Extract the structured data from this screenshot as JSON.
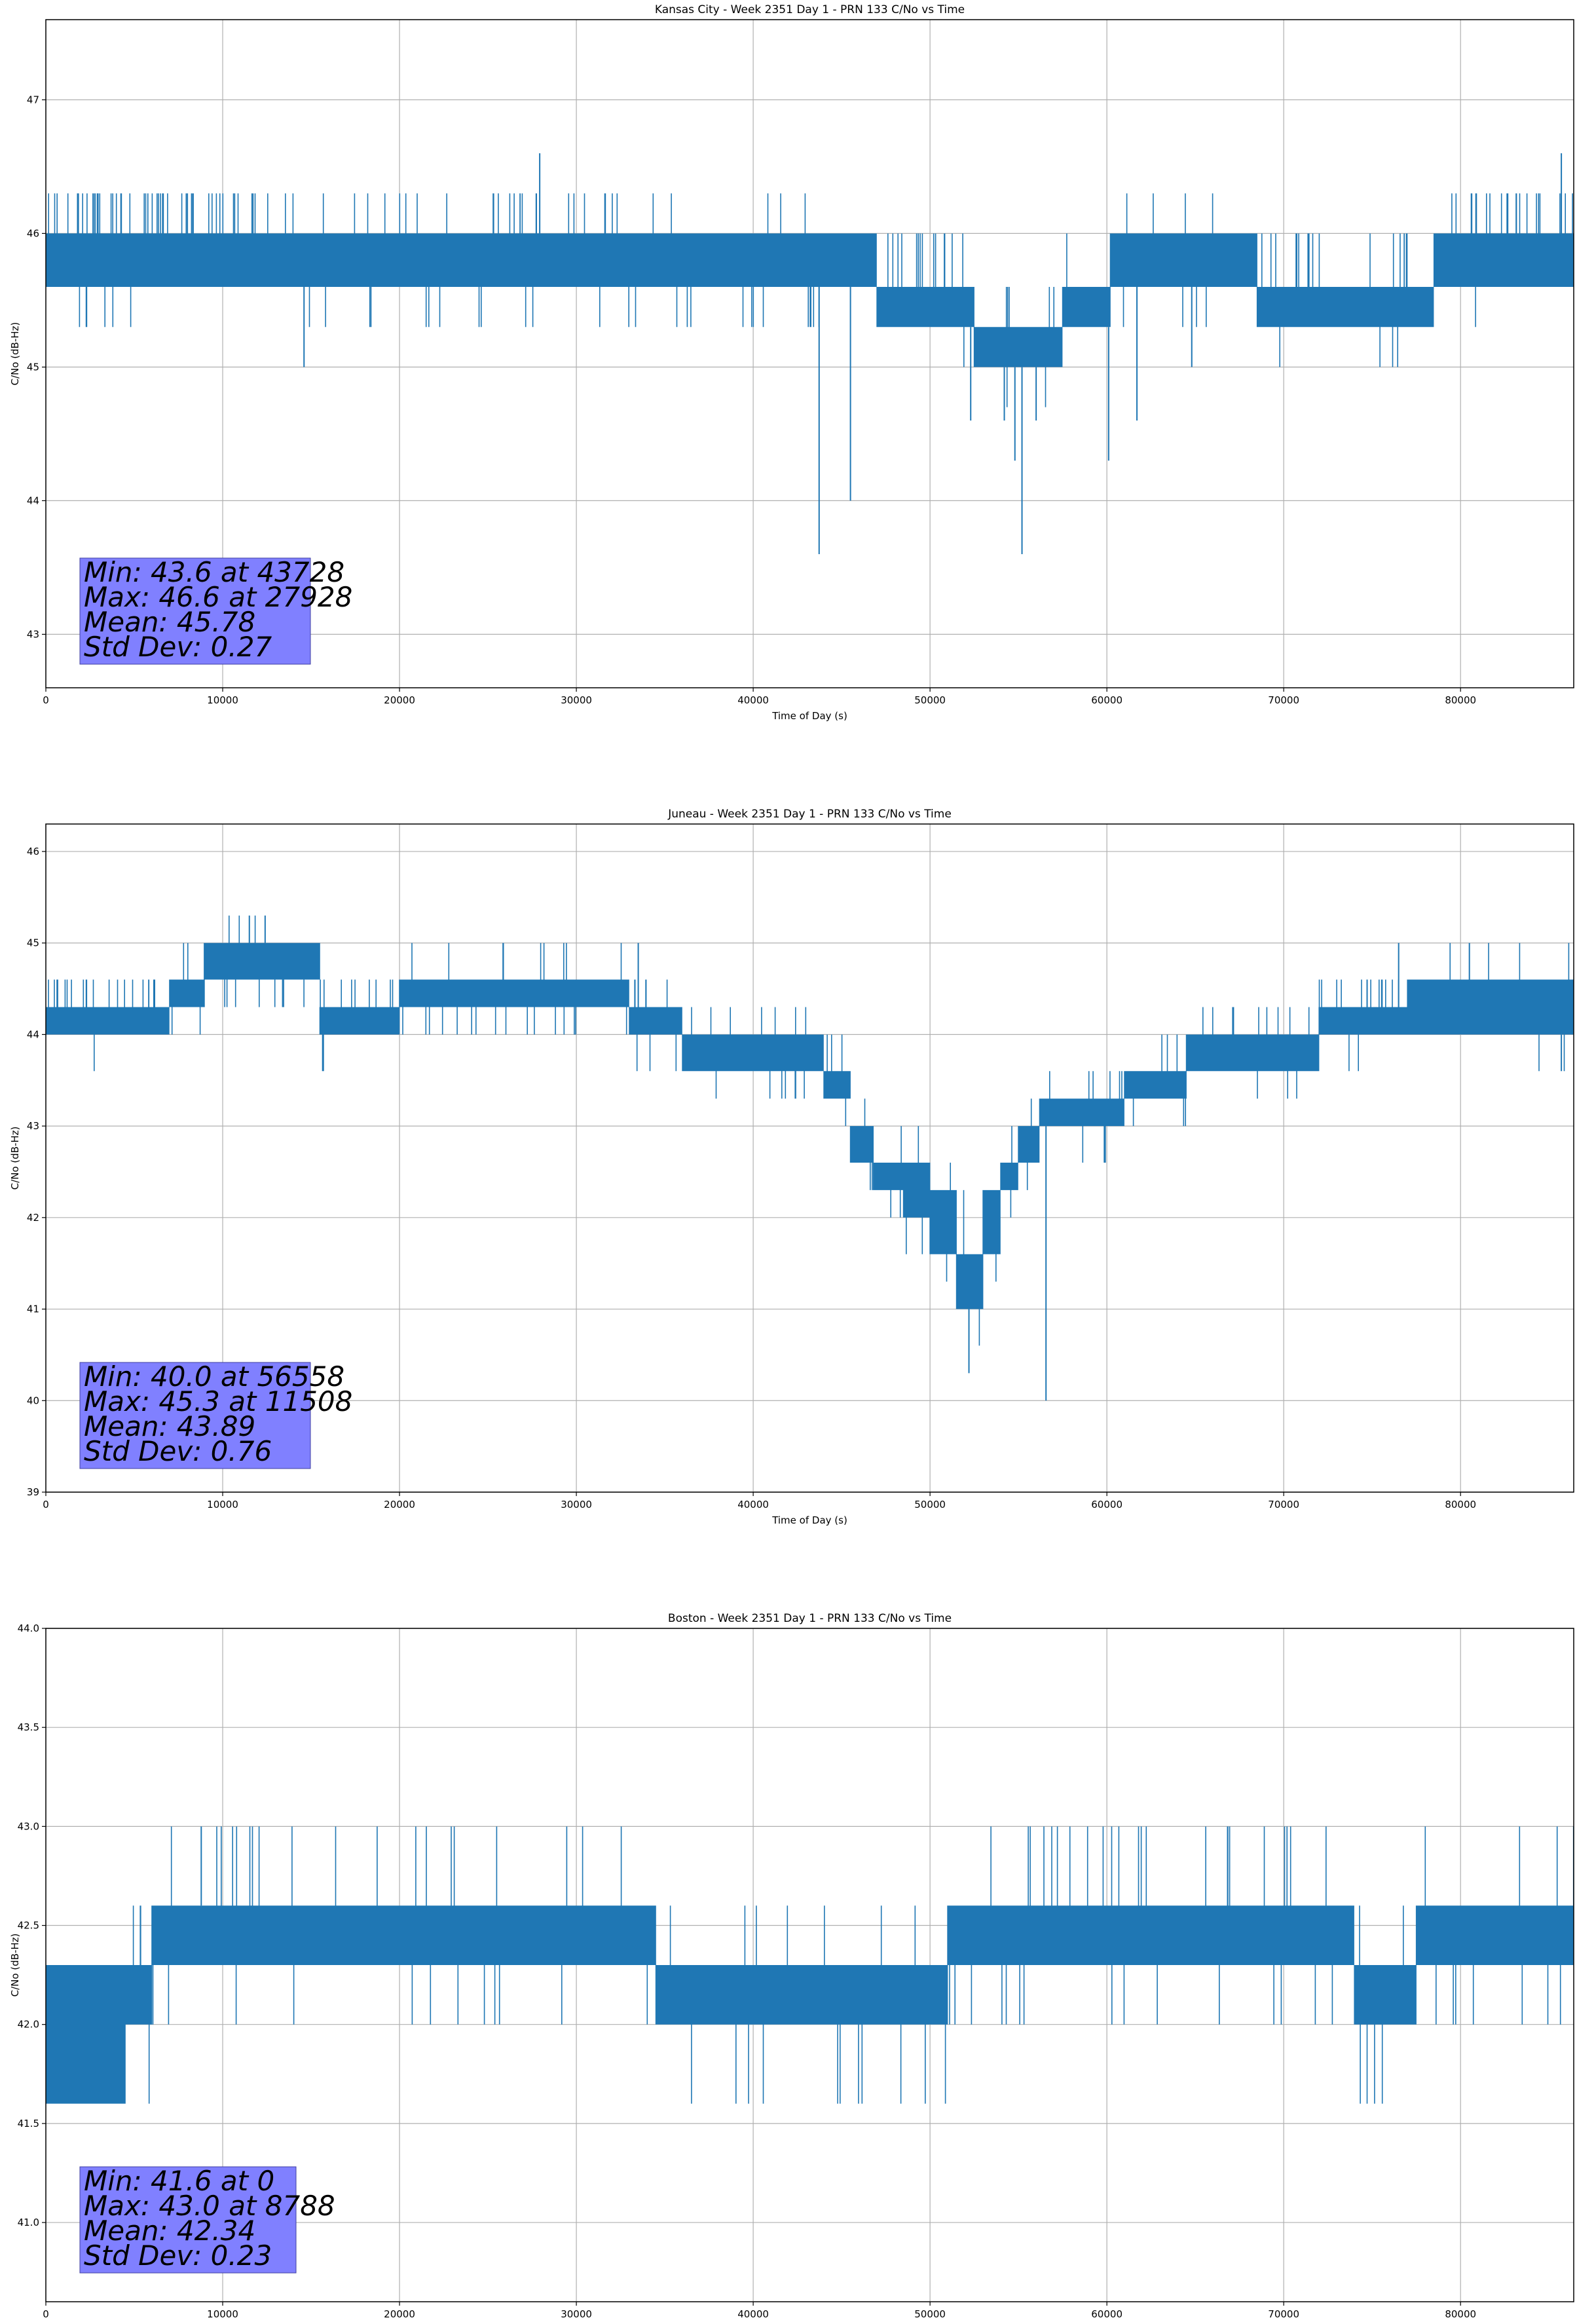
{
  "colors": {
    "line": "#1f77b4",
    "grid": "#b0b0b0",
    "stats_box_fill": "#8080ff",
    "stats_box_edge": "#4040a0",
    "axis": "#000000",
    "background": "#ffffff"
  },
  "chart_data": [
    {
      "type": "line",
      "title": "Kansas City - Week 2351 Day 1 - PRN 133 C/No vs Time",
      "xlabel": "Time of Day (s)",
      "ylabel": "C/No (dB-Hz)",
      "xlim": [
        0,
        86400
      ],
      "ylim": [
        42.6,
        47.6
      ],
      "xticks": [
        0,
        10000,
        20000,
        30000,
        40000,
        50000,
        60000,
        70000,
        80000
      ],
      "yticks": [
        43,
        44,
        45,
        46,
        47
      ],
      "ytick_labels": [
        "43",
        "44",
        "45",
        "46",
        "47"
      ],
      "grid": true,
      "resolution": 0.3,
      "band_segments": [
        {
          "x": [
            0,
            14600
          ],
          "low": 45.6,
          "high": 46.0,
          "up_rate": 0.45,
          "up_to": 46.3,
          "down_rate": 0.05,
          "down_to": 45.3
        },
        {
          "x": [
            14600,
            35000
          ],
          "low": 45.6,
          "high": 46.0,
          "up_rate": 0.15,
          "up_to": 46.3,
          "down_rate": 0.08,
          "down_to": 45.3
        },
        {
          "x": [
            35000,
            47000
          ],
          "low": 45.6,
          "high": 46.0,
          "up_rate": 0.04,
          "up_to": 46.3,
          "down_rate": 0.12,
          "down_to": 45.3
        },
        {
          "x": [
            47000,
            52500
          ],
          "low": 45.3,
          "high": 45.6,
          "up_rate": 0.3,
          "up_to": 46.0,
          "down_rate": 0.02,
          "down_to": 45.0
        },
        {
          "x": [
            52500,
            57500
          ],
          "low": 45.0,
          "high": 45.3,
          "up_rate": 0.12,
          "up_to": 45.6,
          "down_rate": 0.05,
          "down_to": 44.7
        },
        {
          "x": [
            57500,
            60200
          ],
          "low": 45.3,
          "high": 45.6,
          "up_rate": 0.05,
          "up_to": 46.0,
          "down_rate": 0.02,
          "down_to": 45.0
        },
        {
          "x": [
            60200,
            68500
          ],
          "low": 45.6,
          "high": 46.0,
          "up_rate": 0.06,
          "up_to": 46.3,
          "down_rate": 0.06,
          "down_to": 45.3
        },
        {
          "x": [
            68500,
            78500
          ],
          "low": 45.3,
          "high": 45.6,
          "up_rate": 0.2,
          "up_to": 46.0,
          "down_rate": 0.05,
          "down_to": 45.0
        },
        {
          "x": [
            78500,
            80500
          ],
          "low": 45.6,
          "high": 46.0,
          "up_rate": 0.1,
          "up_to": 46.3,
          "down_rate": 0.02,
          "down_to": 45.3
        },
        {
          "x": [
            80500,
            86400
          ],
          "low": 45.6,
          "high": 46.0,
          "up_rate": 0.4,
          "up_to": 46.3,
          "down_rate": 0.02,
          "down_to": 45.3
        }
      ],
      "spikes": [
        {
          "x": 43728,
          "y": 43.6
        },
        {
          "x": 45500,
          "y": 44.0
        },
        {
          "x": 55200,
          "y": 43.6
        },
        {
          "x": 54800,
          "y": 44.3
        },
        {
          "x": 56000,
          "y": 44.6
        },
        {
          "x": 52300,
          "y": 44.6
        },
        {
          "x": 54200,
          "y": 44.6
        },
        {
          "x": 60100,
          "y": 44.3
        },
        {
          "x": 61700,
          "y": 44.6
        },
        {
          "x": 64800,
          "y": 45.0
        },
        {
          "x": 14600,
          "y": 45.0
        },
        {
          "x": 27928,
          "y": 46.6
        },
        {
          "x": 85700,
          "y": 46.6
        }
      ],
      "stats": {
        "min": "Min: 43.6 at 43728",
        "max": "Max: 46.6 at 27928",
        "mean": "Mean: 45.78",
        "std": "Std Dev: 0.27"
      }
    },
    {
      "type": "line",
      "title": "Juneau - Week 2351 Day 1 - PRN 133 C/No vs Time",
      "xlabel": "Time of Day (s)",
      "ylabel": "C/No (dB-Hz)",
      "xlim": [
        0,
        86400
      ],
      "ylim": [
        39.0,
        46.3
      ],
      "xticks": [
        0,
        10000,
        20000,
        30000,
        40000,
        50000,
        60000,
        70000,
        80000
      ],
      "yticks": [
        39,
        40,
        41,
        42,
        43,
        44,
        45,
        46
      ],
      "ytick_labels": [
        "39",
        "40",
        "41",
        "42",
        "43",
        "44",
        "45",
        "46"
      ],
      "grid": true,
      "resolution": 0.3,
      "band_segments": [
        {
          "x": [
            0,
            7000
          ],
          "low": 44.0,
          "high": 44.3,
          "up_rate": 0.35,
          "up_to": 44.6,
          "down_rate": 0.02,
          "down_to": 43.6
        },
        {
          "x": [
            7000,
            9000
          ],
          "low": 44.3,
          "high": 44.6,
          "up_rate": 0.2,
          "up_to": 45.0,
          "down_rate": 0.1,
          "down_to": 44.0
        },
        {
          "x": [
            9000,
            15500
          ],
          "low": 44.6,
          "high": 45.0,
          "up_rate": 0.05,
          "up_to": 45.3,
          "down_rate": 0.15,
          "down_to": 44.3
        },
        {
          "x": [
            15500,
            20000
          ],
          "low": 44.0,
          "high": 44.3,
          "up_rate": 0.25,
          "up_to": 44.6,
          "down_rate": 0.05,
          "down_to": 43.6
        },
        {
          "x": [
            20000,
            33000
          ],
          "low": 44.3,
          "high": 44.6,
          "up_rate": 0.08,
          "up_to": 45.0,
          "down_rate": 0.15,
          "down_to": 44.0
        },
        {
          "x": [
            33000,
            36000
          ],
          "low": 44.0,
          "high": 44.3,
          "up_rate": 0.2,
          "up_to": 44.6,
          "down_rate": 0.1,
          "down_to": 43.6
        },
        {
          "x": [
            36000,
            44000
          ],
          "low": 43.6,
          "high": 44.0,
          "up_rate": 0.1,
          "up_to": 44.3,
          "down_rate": 0.1,
          "down_to": 43.3
        },
        {
          "x": [
            44000,
            45500
          ],
          "low": 43.3,
          "high": 43.6,
          "up_rate": 0.2,
          "up_to": 44.0,
          "down_rate": 0.1,
          "down_to": 43.0
        },
        {
          "x": [
            45500,
            46800
          ],
          "low": 42.6,
          "high": 43.0,
          "up_rate": 0.1,
          "up_to": 43.3,
          "down_rate": 0.2,
          "down_to": 42.3
        },
        {
          "x": [
            46800,
            48500
          ],
          "low": 42.3,
          "high": 42.6,
          "up_rate": 0.1,
          "up_to": 43.0,
          "down_rate": 0.15,
          "down_to": 42.0
        },
        {
          "x": [
            48500,
            50000
          ],
          "low": 42.0,
          "high": 42.6,
          "up_rate": 0.05,
          "up_to": 43.0,
          "down_rate": 0.15,
          "down_to": 41.6
        },
        {
          "x": [
            50000,
            51500
          ],
          "low": 41.6,
          "high": 42.3,
          "up_rate": 0.05,
          "up_to": 42.6,
          "down_rate": 0.1,
          "down_to": 41.3
        },
        {
          "x": [
            51500,
            53000
          ],
          "low": 41.0,
          "high": 41.6,
          "up_rate": 0.05,
          "up_to": 42.3,
          "down_rate": 0.05,
          "down_to": 40.6
        },
        {
          "x": [
            53000,
            54000
          ],
          "low": 41.6,
          "high": 42.3,
          "up_rate": 0.05,
          "up_to": 42.6,
          "down_rate": 0.1,
          "down_to": 41.3
        },
        {
          "x": [
            54000,
            55000
          ],
          "low": 42.3,
          "high": 42.6,
          "up_rate": 0.1,
          "up_to": 43.0,
          "down_rate": 0.1,
          "down_to": 42.0
        },
        {
          "x": [
            55000,
            56200
          ],
          "low": 42.6,
          "high": 43.0,
          "up_rate": 0.1,
          "up_to": 43.3,
          "down_rate": 0.1,
          "down_to": 42.3
        },
        {
          "x": [
            56200,
            61000
          ],
          "low": 43.0,
          "high": 43.3,
          "up_rate": 0.15,
          "up_to": 43.6,
          "down_rate": 0.1,
          "down_to": 42.6
        },
        {
          "x": [
            61000,
            64500
          ],
          "low": 43.3,
          "high": 43.6,
          "up_rate": 0.1,
          "up_to": 44.0,
          "down_rate": 0.1,
          "down_to": 43.0
        },
        {
          "x": [
            64500,
            72000
          ],
          "low": 43.6,
          "high": 44.0,
          "up_rate": 0.15,
          "up_to": 44.3,
          "down_rate": 0.05,
          "down_to": 43.3
        },
        {
          "x": [
            72000,
            77000
          ],
          "low": 44.0,
          "high": 44.3,
          "up_rate": 0.35,
          "up_to": 44.6,
          "down_rate": 0.05,
          "down_to": 43.6
        },
        {
          "x": [
            77000,
            86400
          ],
          "low": 44.0,
          "high": 44.6,
          "up_rate": 0.05,
          "up_to": 45.0,
          "down_rate": 0.02,
          "down_to": 43.6
        }
      ],
      "spikes": [
        {
          "x": 56558,
          "y": 40.0
        },
        {
          "x": 52200,
          "y": 40.3
        },
        {
          "x": 11508,
          "y": 45.3
        },
        {
          "x": 12400,
          "y": 45.3
        },
        {
          "x": 33500,
          "y": 45.0
        },
        {
          "x": 76500,
          "y": 45.0
        },
        {
          "x": 80500,
          "y": 45.0
        },
        {
          "x": 85700,
          "y": 43.6
        }
      ],
      "stats": {
        "min": "Min: 40.0 at 56558",
        "max": "Max: 45.3 at 11508",
        "mean": "Mean: 43.89",
        "std": "Std Dev: 0.76"
      }
    },
    {
      "type": "line",
      "title": "Boston - Week 2351 Day 1 - PRN 133 C/No vs Time",
      "xlabel": "Time of Day (s)",
      "ylabel": "C/No (dB-Hz)",
      "xlim": [
        0,
        86400
      ],
      "ylim": [
        40.6,
        44.0
      ],
      "xticks": [
        0,
        10000,
        20000,
        30000,
        40000,
        50000,
        60000,
        70000,
        80000
      ],
      "yticks": [
        41.0,
        41.5,
        42.0,
        42.5,
        43.0,
        43.5,
        44.0
      ],
      "ytick_labels": [
        "41.0",
        "41.5",
        "42.0",
        "42.5",
        "43.0",
        "43.5",
        "44.0"
      ],
      "grid": true,
      "resolution": 0.3,
      "band_segments": [
        {
          "x": [
            0,
            4500
          ],
          "low": 41.6,
          "high": 42.3,
          "up_rate": 0.02,
          "up_to": 42.3,
          "down_rate": 0.15,
          "down_to": 41.6
        },
        {
          "x": [
            4500,
            6000
          ],
          "low": 42.0,
          "high": 42.3,
          "up_rate": 0.2,
          "up_to": 42.6,
          "down_rate": 0.1,
          "down_to": 41.6
        },
        {
          "x": [
            6000,
            34500
          ],
          "low": 42.3,
          "high": 42.6,
          "up_rate": 0.08,
          "up_to": 43.0,
          "down_rate": 0.05,
          "down_to": 42.0
        },
        {
          "x": [
            34500,
            51000
          ],
          "low": 42.0,
          "high": 42.3,
          "up_rate": 0.05,
          "up_to": 42.6,
          "down_rate": 0.08,
          "down_to": 41.6
        },
        {
          "x": [
            51000,
            74000
          ],
          "low": 42.3,
          "high": 42.6,
          "up_rate": 0.12,
          "up_to": 43.0,
          "down_rate": 0.08,
          "down_to": 42.0
        },
        {
          "x": [
            74000,
            77500
          ],
          "low": 42.0,
          "high": 42.3,
          "up_rate": 0.08,
          "up_to": 42.6,
          "down_rate": 0.15,
          "down_to": 41.6
        },
        {
          "x": [
            77500,
            86400
          ],
          "low": 42.3,
          "high": 42.6,
          "up_rate": 0.05,
          "up_to": 43.0,
          "down_rate": 0.1,
          "down_to": 42.0
        }
      ],
      "spikes": [
        {
          "x": 0,
          "y": 41.6
        },
        {
          "x": 8788,
          "y": 43.0
        }
      ],
      "stats": {
        "min": "Min: 41.6 at 0",
        "max": "Max: 43.0 at 8788",
        "mean": "Mean: 42.34",
        "std": "Std Dev: 0.23"
      }
    }
  ]
}
